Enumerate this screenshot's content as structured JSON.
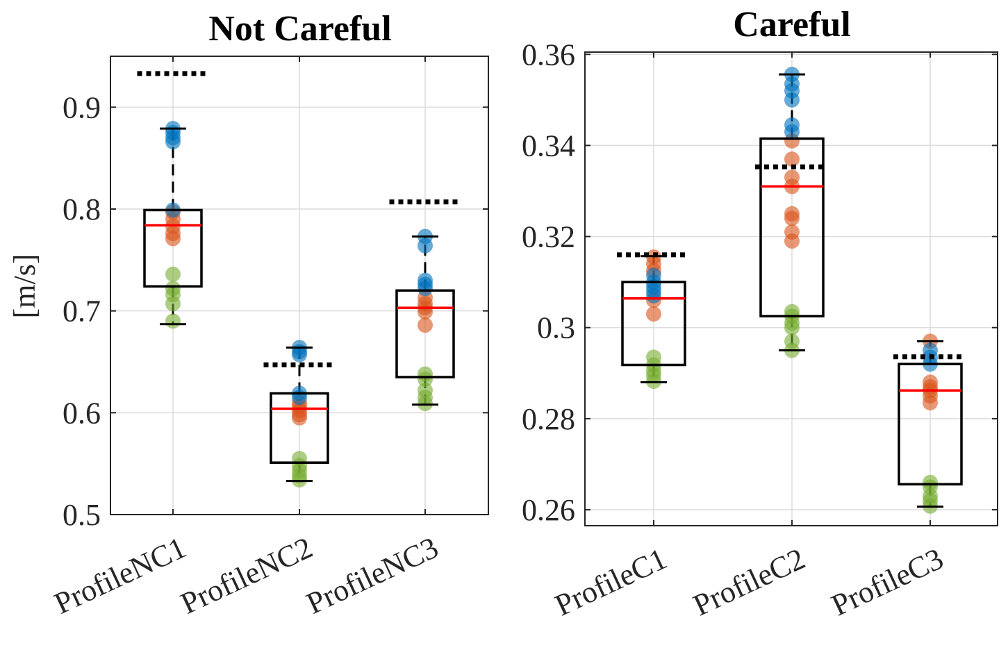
{
  "chart_data": [
    {
      "type": "box",
      "title": "Not Careful",
      "ylabel": "[m/s]",
      "ylim": [
        0.5,
        0.95
      ],
      "yticks": [
        0.5,
        0.6,
        0.7,
        0.8,
        0.9
      ],
      "ytick_labels": [
        "0.5",
        "0.6",
        "0.7",
        "0.8",
        "0.9"
      ],
      "grid": true,
      "categories": [
        "ProfileNC1",
        "ProfileNC2",
        "ProfileNC3"
      ],
      "boxes": [
        {
          "q1": 0.724,
          "median": 0.784,
          "q3": 0.799,
          "whisker_low": 0.687,
          "whisker_high": 0.879,
          "reference": 0.933
        },
        {
          "q1": 0.551,
          "median": 0.604,
          "q3": 0.619,
          "whisker_low": 0.533,
          "whisker_high": 0.664,
          "reference": 0.647
        },
        {
          "q1": 0.635,
          "median": 0.703,
          "q3": 0.72,
          "whisker_low": 0.608,
          "whisker_high": 0.773,
          "reference": 0.807
        }
      ],
      "points": [
        {
          "blue": [
            0.879,
            0.875,
            0.87,
            0.866,
            0.799
          ],
          "orange": [
            0.797,
            0.79,
            0.783,
            0.776,
            0.771
          ],
          "green": [
            0.736,
            0.722,
            0.716,
            0.707,
            0.69
          ]
        },
        {
          "blue": [
            0.664,
            0.66,
            0.657,
            0.619,
            0.615
          ],
          "orange": [
            0.61,
            0.606,
            0.602,
            0.598,
            0.595
          ],
          "green": [
            0.555,
            0.548,
            0.543,
            0.538,
            0.534
          ]
        },
        {
          "blue": [
            0.773,
            0.764,
            0.73,
            0.726,
            0.722
          ],
          "orange": [
            0.713,
            0.707,
            0.703,
            0.699,
            0.686
          ],
          "green": [
            0.638,
            0.633,
            0.622,
            0.615,
            0.609
          ]
        }
      ]
    },
    {
      "type": "box",
      "title": "Careful",
      "ylabel": "",
      "ylim": [
        0.2565,
        0.3605
      ],
      "yticks": [
        0.26,
        0.28,
        0.3,
        0.32,
        0.34,
        0.36
      ],
      "ytick_labels": [
        "0.26",
        "0.28",
        "0.3",
        "0.32",
        "0.34",
        "0.36"
      ],
      "grid": true,
      "categories": [
        "ProfileC1",
        "ProfileC2",
        "ProfileC3"
      ],
      "boxes": [
        {
          "q1": 0.2918,
          "median": 0.3064,
          "q3": 0.31,
          "whisker_low": 0.288,
          "whisker_high": 0.3157,
          "reference": 0.316
        },
        {
          "q1": 0.3025,
          "median": 0.331,
          "q3": 0.3415,
          "whisker_low": 0.295,
          "whisker_high": 0.3556,
          "reference": 0.3353
        },
        {
          "q1": 0.2656,
          "median": 0.2862,
          "q3": 0.292,
          "whisker_low": 0.2607,
          "whisker_high": 0.297,
          "reference": 0.2936
        }
      ],
      "points": [
        {
          "blue": [
            0.3115,
            0.31,
            0.309,
            0.308,
            0.307
          ],
          "orange": [
            0.3155,
            0.314,
            0.3125,
            0.306,
            0.303
          ],
          "green": [
            0.2935,
            0.2918,
            0.2905,
            0.2895,
            0.2882
          ]
        },
        {
          "blue": [
            0.3556,
            0.3535,
            0.352,
            0.35,
            0.3445,
            0.343
          ],
          "orange": [
            0.341,
            0.337,
            0.333,
            0.331,
            0.325,
            0.324,
            0.321,
            0.319
          ],
          "green": [
            0.3035,
            0.3025,
            0.301,
            0.3,
            0.297,
            0.295
          ]
        },
        {
          "blue": [
            0.295,
            0.2935,
            0.292
          ],
          "orange": [
            0.297,
            0.288,
            0.287,
            0.2862,
            0.285,
            0.2835
          ],
          "green": [
            0.266,
            0.265,
            0.263,
            0.262,
            0.2608
          ]
        }
      ]
    }
  ],
  "colors": {
    "box": "#000000",
    "median": "#ff0000",
    "reference": "#000000",
    "grid": "#dcdcdc",
    "axis": "#262626",
    "blue": "#0072bd",
    "orange": "#d95319",
    "green": "#77ac30"
  }
}
